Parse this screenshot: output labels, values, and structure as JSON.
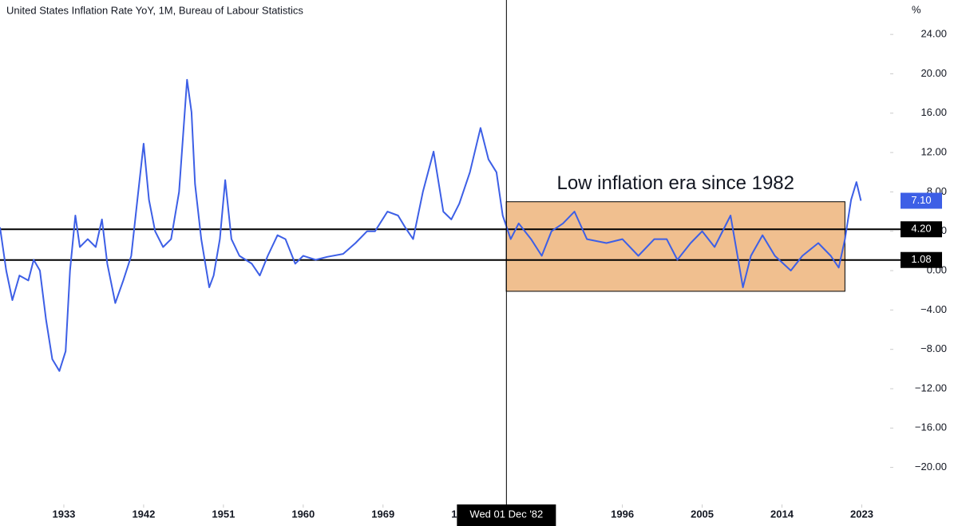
{
  "chart_data": {
    "type": "line",
    "title": "United States Inflation Rate YoY, 1M, Bureau of Labour Statistics",
    "y_unit": "%",
    "series": [
      {
        "name": "United States Inflation Rate YoY",
        "color": "#3d5fe6",
        "x": [
          1925.8,
          1926.5,
          1927.2,
          1928.0,
          1929.0,
          1929.6,
          1930.3,
          1931.0,
          1931.7,
          1932.5,
          1933.2,
          1933.7,
          1934.3,
          1934.8,
          1935.7,
          1936.6,
          1937.3,
          1937.9,
          1938.8,
          1939.7,
          1940.6,
          1941.2,
          1942.0,
          1942.6,
          1943.3,
          1944.2,
          1945.1,
          1946.0,
          1946.9,
          1947.4,
          1947.8,
          1948.5,
          1949.4,
          1949.9,
          1950.6,
          1951.2,
          1951.9,
          1952.8,
          1954.2,
          1955.1,
          1956.0,
          1957.1,
          1958.0,
          1959.1,
          1960.0,
          1961.4,
          1962.7,
          1964.5,
          1965.9,
          1967.2,
          1968.1,
          1969.5,
          1970.7,
          1971.5,
          1972.4,
          1973.5,
          1974.7,
          1975.8,
          1976.7,
          1977.6,
          1978.8,
          1980.0,
          1980.9,
          1981.8,
          1982.5,
          1983.4,
          1984.3,
          1985.7,
          1986.9,
          1988.0,
          1989.3,
          1990.6,
          1992.0,
          1994.2,
          1996.0,
          1997.8,
          1999.6,
          2001.0,
          2002.2,
          2003.7,
          2005.0,
          2006.4,
          2008.2,
          2009.6,
          2010.5,
          2011.8,
          2013.2,
          2015.0,
          2016.3,
          2018.1,
          2019.5,
          2020.4,
          2021.1,
          2021.8,
          2022.4,
          2022.9
        ],
        "values": [
          4.4,
          0.0,
          -3.0,
          -0.5,
          -1.0,
          1.1,
          0.0,
          -5.0,
          -9.0,
          -10.2,
          -8.2,
          0.0,
          5.6,
          2.4,
          3.2,
          2.4,
          5.2,
          0.7,
          -3.3,
          -1.0,
          1.5,
          6.4,
          12.9,
          7.2,
          4.0,
          2.4,
          3.2,
          8.0,
          19.4,
          16.1,
          8.8,
          3.2,
          -1.7,
          -0.5,
          3.2,
          9.2,
          3.2,
          1.5,
          0.7,
          -0.5,
          1.5,
          3.6,
          3.2,
          0.7,
          1.5,
          1.1,
          1.4,
          1.7,
          2.8,
          4.0,
          4.0,
          6.0,
          5.6,
          4.4,
          3.2,
          8.0,
          12.1,
          6.0,
          5.2,
          6.8,
          10.0,
          14.5,
          11.3,
          10.0,
          5.6,
          3.2,
          4.8,
          3.2,
          1.5,
          4.0,
          4.8,
          6.0,
          3.2,
          2.8,
          3.2,
          1.5,
          3.2,
          3.2,
          1.1,
          2.8,
          4.0,
          2.4,
          5.6,
          -1.7,
          1.5,
          3.6,
          1.5,
          0.0,
          1.5,
          2.8,
          1.5,
          0.3,
          3.2,
          7.2,
          9.0,
          7.1
        ]
      }
    ],
    "xlim": [
      1925.8,
      2026.2
    ],
    "xticks": [
      1933,
      1942,
      1951,
      1960,
      1969,
      1978,
      1987,
      1996,
      2005,
      2014,
      2023
    ],
    "ylim": [
      -23.6,
      27.5
    ],
    "yticks": [
      {
        "value": 24,
        "label": "24.00"
      },
      {
        "value": 20,
        "label": "20.00"
      },
      {
        "value": 16,
        "label": "16.00"
      },
      {
        "value": 12,
        "label": "12.00"
      },
      {
        "value": 8,
        "label": "8.00"
      },
      {
        "value": 4,
        "label": "4.00"
      },
      {
        "value": 0,
        "label": "0.00"
      },
      {
        "value": -4,
        "label": "−4.00"
      },
      {
        "value": -8,
        "label": "−8.00"
      },
      {
        "value": -12,
        "label": "−12.00"
      },
      {
        "value": -16,
        "label": "−16.00"
      },
      {
        "value": -20,
        "label": "−20.00"
      }
    ],
    "horizontal_lines": [
      {
        "value": 4.2,
        "label": "4.20"
      },
      {
        "value": 1.08,
        "label": "1.08"
      }
    ],
    "last_value_label": "7.10",
    "annotation": {
      "text": "Low inflation era since 1982",
      "x": [
        1982.9,
        2021.1
      ],
      "y": [
        -2.1,
        7.0
      ],
      "color": "#f0bf8f"
    },
    "crosshair": {
      "x": 1982.92,
      "label": "Wed 01 Dec '82"
    }
  }
}
